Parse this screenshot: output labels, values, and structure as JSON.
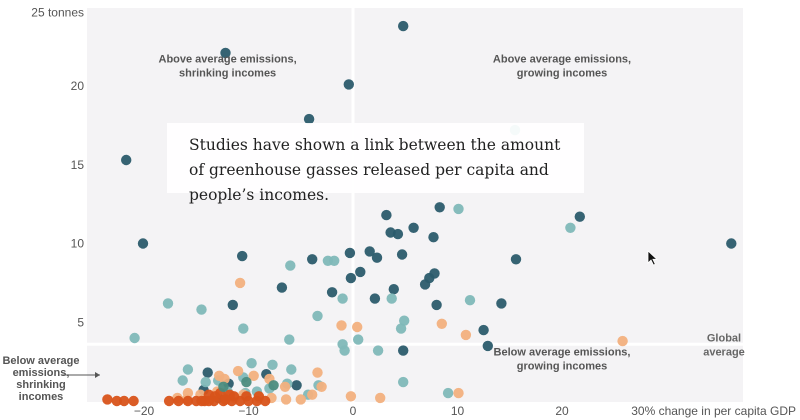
{
  "callout": {
    "text": "Studies have shown a link between the amount of greenhouse gasses released per capita and people’s incomes."
  },
  "colors": {
    "panel": "#f4f3f5",
    "divider": "#ffffff",
    "dark_teal": "#2b5b6b",
    "light_teal": "#7fb8b8",
    "light_orange": "#f2b07e",
    "dark_orange": "#d8531a",
    "muted_dark": "#4c8c7e"
  },
  "chart_data": {
    "type": "scatter",
    "xlabel": "30% change in per capita GDP",
    "ylabel_top": "25 tonnes",
    "xlim": [
      -25,
      37
    ],
    "ylim": [
      0,
      25
    ],
    "x_ticks": [
      {
        "v": -20,
        "label": "−20"
      },
      {
        "v": -10,
        "label": "−10"
      },
      {
        "v": 0,
        "label": "0"
      },
      {
        "v": 10,
        "label": "10"
      },
      {
        "v": 20,
        "label": "20"
      }
    ],
    "y_ticks": [
      {
        "v": 5,
        "label": "5"
      },
      {
        "v": 10,
        "label": "10"
      },
      {
        "v": 15,
        "label": "15"
      },
      {
        "v": 20,
        "label": "20"
      }
    ],
    "global_average": 3.6,
    "global_average_label": [
      "Global",
      "average"
    ],
    "quadrant_labels": [
      {
        "lines": [
          "Above average emissions,",
          "shrinking incomes"
        ],
        "x": -12,
        "y": 21.5,
        "align": "middle"
      },
      {
        "lines": [
          "Above average emissions,",
          "growing incomes"
        ],
        "x": 20,
        "y": 21.5,
        "align": "middle"
      },
      {
        "lines": [
          "Below average emissions,",
          "growing incomes"
        ],
        "x": 20,
        "y": 2.9,
        "align": "middle"
      }
    ],
    "outside_label": {
      "lines": [
        "Below average",
        "emissions,",
        "shrinking",
        "incomes"
      ]
    },
    "series": [
      {
        "color": "dark_teal",
        "points": [
          [
            4.8,
            23.8
          ],
          [
            -12.2,
            22.1
          ],
          [
            -0.4,
            20.1
          ],
          [
            -4.2,
            17.9
          ],
          [
            -21.7,
            15.3
          ],
          [
            -20.1,
            10.0
          ],
          [
            -10.6,
            9.2
          ],
          [
            3.2,
            11.8
          ],
          [
            5.8,
            11.0
          ],
          [
            8.3,
            12.3
          ],
          [
            3.6,
            10.7
          ],
          [
            4.3,
            10.6
          ],
          [
            7.7,
            10.4
          ],
          [
            1.6,
            9.5
          ],
          [
            -0.3,
            9.4
          ],
          [
            2.3,
            9.1
          ],
          [
            4.7,
            9.3
          ],
          [
            -3.9,
            9.0
          ],
          [
            15.6,
            9.0
          ],
          [
            21.7,
            11.7
          ],
          [
            36.2,
            10.0
          ],
          [
            0.7,
            8.2
          ],
          [
            -0.2,
            7.8
          ],
          [
            7.3,
            7.8
          ],
          [
            7.8,
            8.1
          ],
          [
            6.9,
            7.4
          ],
          [
            -6.8,
            7.2
          ],
          [
            -2.0,
            6.9
          ],
          [
            2.1,
            6.5
          ],
          [
            3.9,
            7.1
          ],
          [
            8.0,
            6.1
          ],
          [
            14.2,
            6.2
          ],
          [
            -11.5,
            6.1
          ],
          [
            12.5,
            4.5
          ],
          [
            12.9,
            3.5
          ],
          [
            4.8,
            3.2
          ],
          [
            -8.3,
            1.7
          ],
          [
            -5.4,
            1.0
          ],
          [
            -11.9,
            1.1
          ],
          [
            -14.3,
            0.7
          ],
          [
            -12.9,
            0.2
          ],
          [
            -13.9,
            1.8
          ]
        ]
      },
      {
        "color": "light_teal",
        "points": [
          [
            15.5,
            17.2
          ],
          [
            -6.0,
            8.6
          ],
          [
            -2.4,
            8.9
          ],
          [
            -1.8,
            8.9
          ],
          [
            -17.7,
            6.2
          ],
          [
            10.1,
            12.2
          ],
          [
            20.8,
            11.0
          ],
          [
            -14.5,
            5.8
          ],
          [
            -1.0,
            6.5
          ],
          [
            -3.4,
            5.4
          ],
          [
            3.7,
            6.5
          ],
          [
            4.9,
            5.1
          ],
          [
            4.6,
            4.6
          ],
          [
            11.2,
            6.4
          ],
          [
            -10.5,
            4.6
          ],
          [
            -20.9,
            4.0
          ],
          [
            -6.1,
            3.9
          ],
          [
            0.5,
            3.9
          ],
          [
            -1.0,
            3.6
          ],
          [
            2.4,
            3.2
          ],
          [
            -0.8,
            3.2
          ],
          [
            -5.9,
            2.0
          ],
          [
            -9.7,
            2.4
          ],
          [
            -15.8,
            2.0
          ],
          [
            -16.3,
            1.3
          ],
          [
            -14.1,
            1.2
          ],
          [
            -10.5,
            1.5
          ],
          [
            -7.7,
            2.3
          ],
          [
            -12.9,
            1.3
          ],
          [
            -6.3,
            1.1
          ],
          [
            -3.3,
            1.0
          ],
          [
            4.8,
            1.2
          ],
          [
            9.1,
            0.5
          ],
          [
            -10.3,
            0.5
          ],
          [
            -9.2,
            0.6
          ],
          [
            -4.3,
            0.4
          ],
          [
            -12.0,
            0.6
          ],
          [
            -8.0,
            0.8
          ]
        ]
      },
      {
        "color": "light_orange",
        "points": [
          [
            8.5,
            4.9
          ],
          [
            -10.8,
            7.5
          ],
          [
            -1.1,
            4.8
          ],
          [
            10.8,
            4.2
          ],
          [
            0.4,
            4.7
          ],
          [
            25.8,
            3.8
          ],
          [
            -8.0,
            1.4
          ],
          [
            -12.3,
            1.4
          ],
          [
            -11.0,
            1.9
          ],
          [
            -9.5,
            1.6
          ],
          [
            -3.9,
            0.4
          ],
          [
            -3.0,
            0.9
          ],
          [
            -6.5,
            0.9
          ],
          [
            -0.2,
            0.3
          ],
          [
            2.6,
            0.2
          ],
          [
            10.1,
            0.5
          ],
          [
            -11.9,
            0.3
          ],
          [
            -15.8,
            0.5
          ],
          [
            -15.9,
            0.1
          ],
          [
            -7.8,
            0.2
          ],
          [
            -16.8,
            0.2
          ],
          [
            -14.6,
            0.4
          ],
          [
            -11.3,
            0.2
          ],
          [
            -10.5,
            0.4
          ],
          [
            -13.0,
            0.6
          ],
          [
            -9.0,
            0.2
          ],
          [
            -6.4,
            0.1
          ],
          [
            -3.4,
            1.8
          ],
          [
            -12.8,
            1.6
          ],
          [
            -5.0,
            0.1
          ]
        ]
      },
      {
        "color": "dark_orange",
        "points": [
          [
            -23.5,
            0.1
          ],
          [
            -22.6,
            0.0
          ],
          [
            -21.9,
            0.0
          ],
          [
            -21.0,
            0.0
          ],
          [
            -17.6,
            0.0
          ],
          [
            -16.7,
            0.0
          ],
          [
            -15.8,
            0.0
          ],
          [
            -15.0,
            0.0
          ],
          [
            -14.2,
            0.0
          ],
          [
            -13.3,
            0.0
          ],
          [
            -12.4,
            0.0
          ],
          [
            -11.6,
            0.0
          ],
          [
            -10.8,
            0.0
          ],
          [
            -10.0,
            0.0
          ],
          [
            -9.2,
            0.0
          ],
          [
            -8.4,
            0.0
          ],
          [
            -13.8,
            0.4
          ],
          [
            -12.7,
            0.5
          ],
          [
            -11.4,
            0.3
          ],
          [
            -10.2,
            0.3
          ],
          [
            -9.0,
            0.3
          ],
          [
            -13.2,
            0.3
          ],
          [
            -11.8,
            0.4
          ],
          [
            -12.2,
            0.1
          ],
          [
            -13.8,
            0.0
          ],
          [
            -14.5,
            0.0
          ]
        ]
      },
      {
        "color": "muted_dark",
        "points": [
          [
            -10.2,
            1.2
          ],
          [
            -7.6,
            1.0
          ],
          [
            -12.4,
            0.9
          ]
        ]
      }
    ]
  }
}
